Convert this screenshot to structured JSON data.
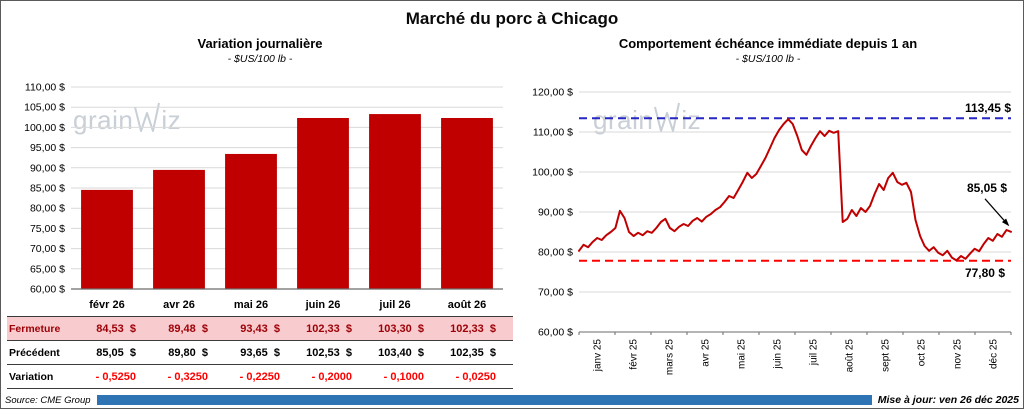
{
  "page": {
    "title": "Marché du porc à Chicago"
  },
  "watermark": {
    "left": "grain",
    "right": "iz"
  },
  "footer": {
    "source": "Source: CME Group",
    "updated": "Mise à jour: ven 26 déc 2025"
  },
  "colors": {
    "bar_red": "#c00000",
    "line_red": "#c00000",
    "resistance_blue": "#2727c3",
    "support_red": "#ff0000",
    "closing_row_bg": "#f8cbce",
    "closing_row_text": "#9c0006",
    "variation_text": "#ff0000",
    "footer_bar_blue": "#2e74b5"
  },
  "chart_data": [
    {
      "type": "bar",
      "title": "Variation  journalière",
      "subtitle": "- $US/100 lb -",
      "categories": [
        "févr 26",
        "avr 26",
        "mai 26",
        "juin 26",
        "juil 26",
        "août 26"
      ],
      "values": [
        84.53,
        89.48,
        93.43,
        102.33,
        103.3,
        102.33
      ],
      "ylim": [
        60,
        110
      ],
      "yticks": [
        60,
        65,
        70,
        75,
        80,
        85,
        90,
        95,
        100,
        105,
        110
      ],
      "ytick_labels": [
        "60,00 $",
        "65,00 $",
        "70,00 $",
        "75,00 $",
        "80,00 $",
        "85,00 $",
        "90,00 $",
        "95,00 $",
        "100,00 $",
        "105,00 $",
        "110,00 $"
      ],
      "bar_color": "#c00000",
      "grid": true,
      "legend": "none"
    },
    {
      "type": "line",
      "title": "Comportement  échéance  immédiate  depuis 1 an",
      "subtitle": "- $US/100 lb -",
      "x_labels": [
        "janv 25",
        "févr 25",
        "mars 25",
        "avr 25",
        "mai 25",
        "juin 25",
        "juil 25",
        "août 25",
        "sept 25",
        "oct 25",
        "nov 25",
        "déc 25"
      ],
      "ylim": [
        60,
        120
      ],
      "yticks": [
        60,
        70,
        80,
        90,
        100,
        110,
        120
      ],
      "ytick_labels": [
        "60,00 $",
        "70,00 $",
        "80,00 $",
        "90,00 $",
        "100,00 $",
        "110,00 $",
        "120,00 $"
      ],
      "line_color": "#c00000",
      "grid": true,
      "resistance": {
        "value": 113.45,
        "label": "113,45 $",
        "color": "#2727c3"
      },
      "support": {
        "value": 77.8,
        "label": "77,80 $",
        "color": "#ff0000"
      },
      "last_point": {
        "value": 85.05,
        "label": "85,05 $"
      },
      "points": [
        80.3,
        81.8,
        81.2,
        82.5,
        83.5,
        83.0,
        84.2,
        85.0,
        86.0,
        90.3,
        88.5,
        85.0,
        84.0,
        84.8,
        84.2,
        85.2,
        84.8,
        86.0,
        87.5,
        88.3,
        86.0,
        85.2,
        86.3,
        87.0,
        86.5,
        87.8,
        88.5,
        87.6,
        88.8,
        89.5,
        90.5,
        91.2,
        92.5,
        94.0,
        93.5,
        95.5,
        97.5,
        99.8,
        98.5,
        99.5,
        101.5,
        103.5,
        106.0,
        108.5,
        110.5,
        112.0,
        113.2,
        112.0,
        109.0,
        105.5,
        104.3,
        106.5,
        108.5,
        110.2,
        109.0,
        110.3,
        109.8,
        110.2,
        87.5,
        88.3,
        90.5,
        89.0,
        91.0,
        90.0,
        91.5,
        94.5,
        97.0,
        95.5,
        98.5,
        99.8,
        97.5,
        96.8,
        97.3,
        95.0,
        88.0,
        84.0,
        81.5,
        80.3,
        81.2,
        79.8,
        79.2,
        80.3,
        78.6,
        77.9,
        79.0,
        78.3,
        79.6,
        80.8,
        80.2,
        82.0,
        83.5,
        82.8,
        84.5,
        83.8,
        85.5,
        85.05
      ]
    }
  ],
  "table": {
    "rows": [
      {
        "label": "Fermeture",
        "values": [
          "84,53  $",
          "89,48  $",
          "93,43  $",
          "102,33  $",
          "103,30  $",
          "102,33  $"
        ]
      },
      {
        "label": "Précédent",
        "values": [
          "85,05  $",
          "89,80  $",
          "93,65  $",
          "102,53  $",
          "103,40  $",
          "102,35  $"
        ]
      },
      {
        "label": "Variation",
        "values": [
          "- 0,5250",
          "- 0,3250",
          "- 0,2250",
          "- 0,2000",
          "- 0,1000",
          "- 0,0250"
        ]
      }
    ]
  }
}
